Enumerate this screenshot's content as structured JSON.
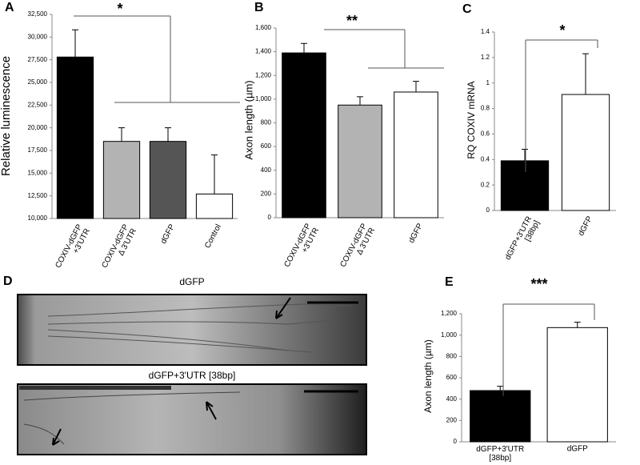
{
  "chart_data": [
    {
      "type": "bar",
      "panel": "A",
      "ylabel": "Relative luminescence",
      "significance": "*",
      "categories": [
        "COXIV-dGFP\n+3'UTR",
        "COXIV-dGFP\nΔ 3'UTR",
        "dGFP",
        "Control"
      ],
      "values": [
        27800,
        18500,
        18500,
        12700
      ],
      "errors": [
        3000,
        1500,
        1500,
        4300
      ],
      "colors": [
        "#000000",
        "#b3b3b3",
        "#555555",
        "#ffffff"
      ],
      "ylim": [
        10000,
        32500
      ],
      "yticks": [
        {
          "value": 10000,
          "label": "10,000"
        },
        {
          "value": 12500,
          "label": "12,500"
        },
        {
          "value": 15000,
          "label": "15,000"
        },
        {
          "value": 17500,
          "label": "17,500"
        },
        {
          "value": 20000,
          "label": "20,000"
        },
        {
          "value": 22500,
          "label": "22,500"
        },
        {
          "value": 25000,
          "label": "25,000"
        },
        {
          "value": 27500,
          "label": "27,500"
        },
        {
          "value": 30000,
          "label": "30,000"
        },
        {
          "value": 32500,
          "label": "32,500"
        }
      ]
    },
    {
      "type": "bar",
      "panel": "B",
      "ylabel": "Axon length (µm)",
      "significance": "**",
      "categories": [
        "COXIV-dGFP\n+3'UTR",
        "COXIV-dGFP\nΔ 3'UTR",
        "dGFP"
      ],
      "values": [
        1390,
        950,
        1060
      ],
      "errors": [
        80,
        70,
        90
      ],
      "colors": [
        "#000000",
        "#b3b3b3",
        "#ffffff"
      ],
      "ylim": [
        0,
        1600
      ],
      "yticks": [
        0,
        200,
        400,
        600,
        800,
        {
          "value": 1000,
          "label": "1,000"
        },
        {
          "value": 1200,
          "label": "1,200"
        },
        {
          "value": 1400,
          "label": "1,400"
        },
        {
          "value": 1600,
          "label": "1,600"
        }
      ]
    },
    {
      "type": "bar",
      "panel": "C",
      "ylabel": "RQ  COXIV mRNA",
      "significance": "*",
      "categories": [
        "dGFP+3'UTR\n[38bp]",
        "dGFP"
      ],
      "values": [
        0.39,
        0.91
      ],
      "errors": [
        0.09,
        0.32
      ],
      "colors": [
        "#000000",
        "#ffffff"
      ],
      "ylim": [
        0,
        1.4
      ],
      "yticks": [
        0,
        0.2,
        0.4,
        0.6,
        0.8,
        1,
        1.2,
        1.4
      ]
    },
    {
      "type": "bar",
      "panel": "E",
      "ylabel": "Axon length (µm)",
      "significance": "***",
      "categories": [
        "dGFP+3'UTR\n[38bp]",
        "dGFP"
      ],
      "values": [
        480,
        1070
      ],
      "errors": [
        40,
        50
      ],
      "colors": [
        "#000000",
        "#ffffff"
      ],
      "ylim": [
        0,
        1200
      ],
      "yticks": [
        0,
        200,
        400,
        600,
        800,
        {
          "value": 1000,
          "label": "1,000"
        },
        {
          "value": 1200,
          "label": "1,200"
        }
      ]
    }
  ],
  "panel_d": {
    "label": "D",
    "images": [
      {
        "title": "dGFP"
      },
      {
        "title": "dGFP+3'UTR [38bp]"
      }
    ]
  }
}
